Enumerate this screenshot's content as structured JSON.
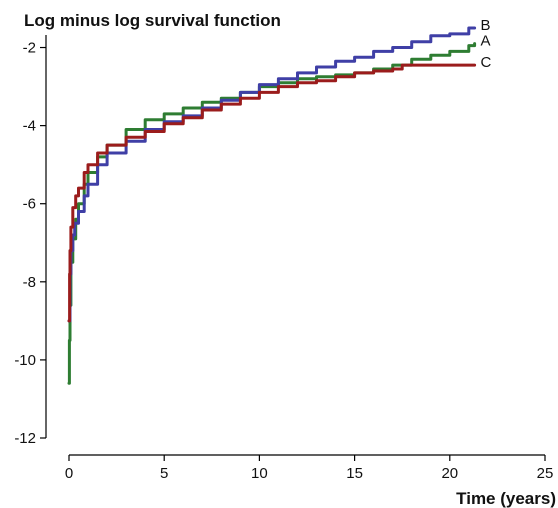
{
  "chart_data": {
    "type": "line",
    "title": "Log minus log survival function",
    "xlabel": "Time (years)",
    "ylabel": "",
    "xlim": [
      0,
      25
    ],
    "ylim": [
      -12,
      -1.5
    ],
    "xticks": [
      0,
      5,
      10,
      15,
      20,
      25
    ],
    "yticks": [
      -2,
      -4,
      -6,
      -8,
      -10,
      -12
    ],
    "grid": false,
    "series": [
      {
        "name": "A",
        "color": "#2e7d32",
        "x": [
          0,
          0.02,
          0.05,
          0.1,
          0.2,
          0.35,
          0.5,
          0.8,
          1.0,
          1.5,
          2,
          3,
          4,
          5,
          6,
          7,
          8,
          9,
          10,
          11,
          12,
          13,
          14,
          15,
          16,
          17,
          18,
          19,
          20,
          21,
          21.3
        ],
        "y": [
          -10.6,
          -9.5,
          -8.6,
          -7.5,
          -6.9,
          -6.4,
          -6.0,
          -5.5,
          -5.2,
          -4.8,
          -4.5,
          -4.1,
          -3.85,
          -3.7,
          -3.55,
          -3.4,
          -3.3,
          -3.15,
          -3.0,
          -2.9,
          -2.8,
          -2.75,
          -2.7,
          -2.65,
          -2.55,
          -2.45,
          -2.3,
          -2.2,
          -2.1,
          -1.95,
          -1.9
        ]
      },
      {
        "name": "B",
        "color": "#3f3fa6",
        "x": [
          0,
          0.05,
          0.1,
          0.2,
          0.3,
          0.5,
          0.8,
          1.0,
          1.5,
          2,
          3,
          4,
          5,
          6,
          7,
          8,
          9,
          10,
          11,
          12,
          13,
          14,
          15,
          16,
          17,
          18,
          19,
          20,
          21,
          21.3
        ],
        "y": [
          -9.0,
          -7.8,
          -7.2,
          -6.8,
          -6.5,
          -6.2,
          -5.8,
          -5.5,
          -5.0,
          -4.7,
          -4.4,
          -4.1,
          -3.9,
          -3.75,
          -3.55,
          -3.35,
          -3.15,
          -2.95,
          -2.8,
          -2.65,
          -2.5,
          -2.35,
          -2.25,
          -2.1,
          -2.0,
          -1.85,
          -1.7,
          -1.65,
          -1.5,
          -1.5
        ]
      },
      {
        "name": "C",
        "color": "#9b1c1c",
        "x": [
          0,
          0.03,
          0.05,
          0.1,
          0.2,
          0.35,
          0.5,
          0.8,
          1.0,
          1.5,
          2,
          3,
          4,
          5,
          6,
          7,
          8,
          9,
          10,
          11,
          12,
          13,
          14,
          15,
          16,
          17,
          17.5,
          18,
          19,
          20,
          21.3
        ],
        "y": [
          -9.0,
          -7.8,
          -7.2,
          -6.6,
          -6.1,
          -5.8,
          -5.6,
          -5.2,
          -5.0,
          -4.7,
          -4.5,
          -4.3,
          -4.15,
          -3.95,
          -3.8,
          -3.6,
          -3.45,
          -3.3,
          -3.15,
          -3.0,
          -2.9,
          -2.85,
          -2.75,
          -2.65,
          -2.6,
          -2.55,
          -2.45,
          -2.45,
          -2.45,
          -2.45,
          -2.45
        ]
      }
    ]
  }
}
